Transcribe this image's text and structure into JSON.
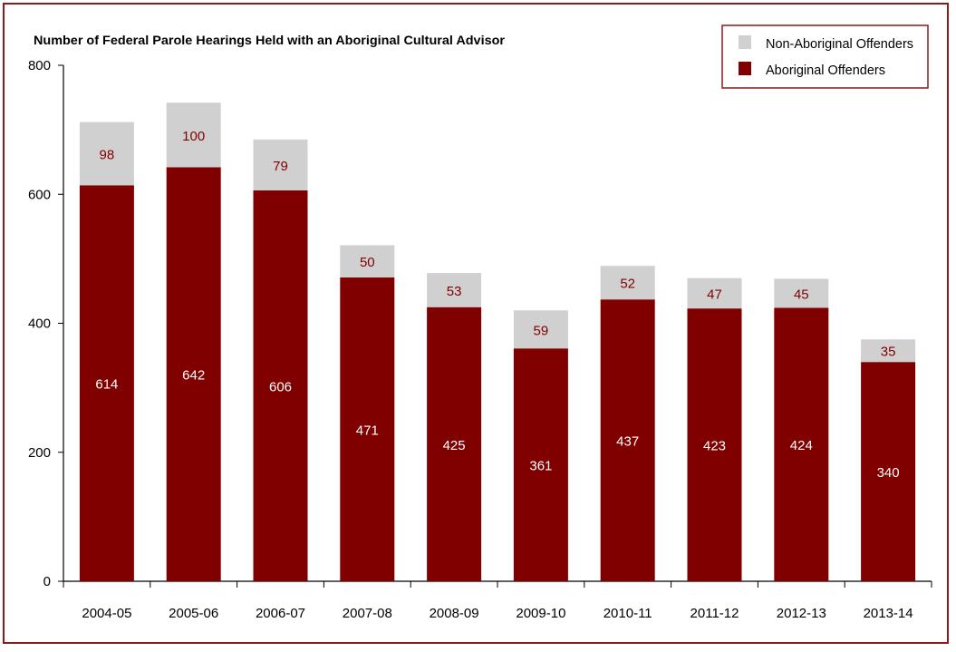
{
  "chart_data": {
    "type": "bar",
    "stacked": true,
    "title": "Number of Federal Parole Hearings Held with an Aboriginal Cultural Advisor",
    "xlabel": "",
    "ylabel": "",
    "ylim": [
      0,
      800
    ],
    "yticks": [
      "0",
      "200",
      "400",
      "600",
      "800"
    ],
    "grid": false,
    "legend_position": "top-right",
    "categories": [
      "2004-05",
      "2005-06",
      "2006-07",
      "2007-08",
      "2008-09",
      "2009-10",
      "2010-11",
      "2011-12",
      "2012-13",
      "2013-14"
    ],
    "series": [
      {
        "name": "Aboriginal Offenders",
        "color": "#800000",
        "label_color": "#ffffff",
        "values": [
          614,
          642,
          606,
          471,
          425,
          361,
          437,
          423,
          424,
          340
        ]
      },
      {
        "name": "Non-Aboriginal Offenders",
        "color": "#d0d0d0",
        "label_color": "#800000",
        "values": [
          98,
          100,
          79,
          50,
          53,
          59,
          52,
          47,
          45,
          35
        ]
      }
    ]
  },
  "colors": {
    "frame": "#8b1a1a"
  }
}
